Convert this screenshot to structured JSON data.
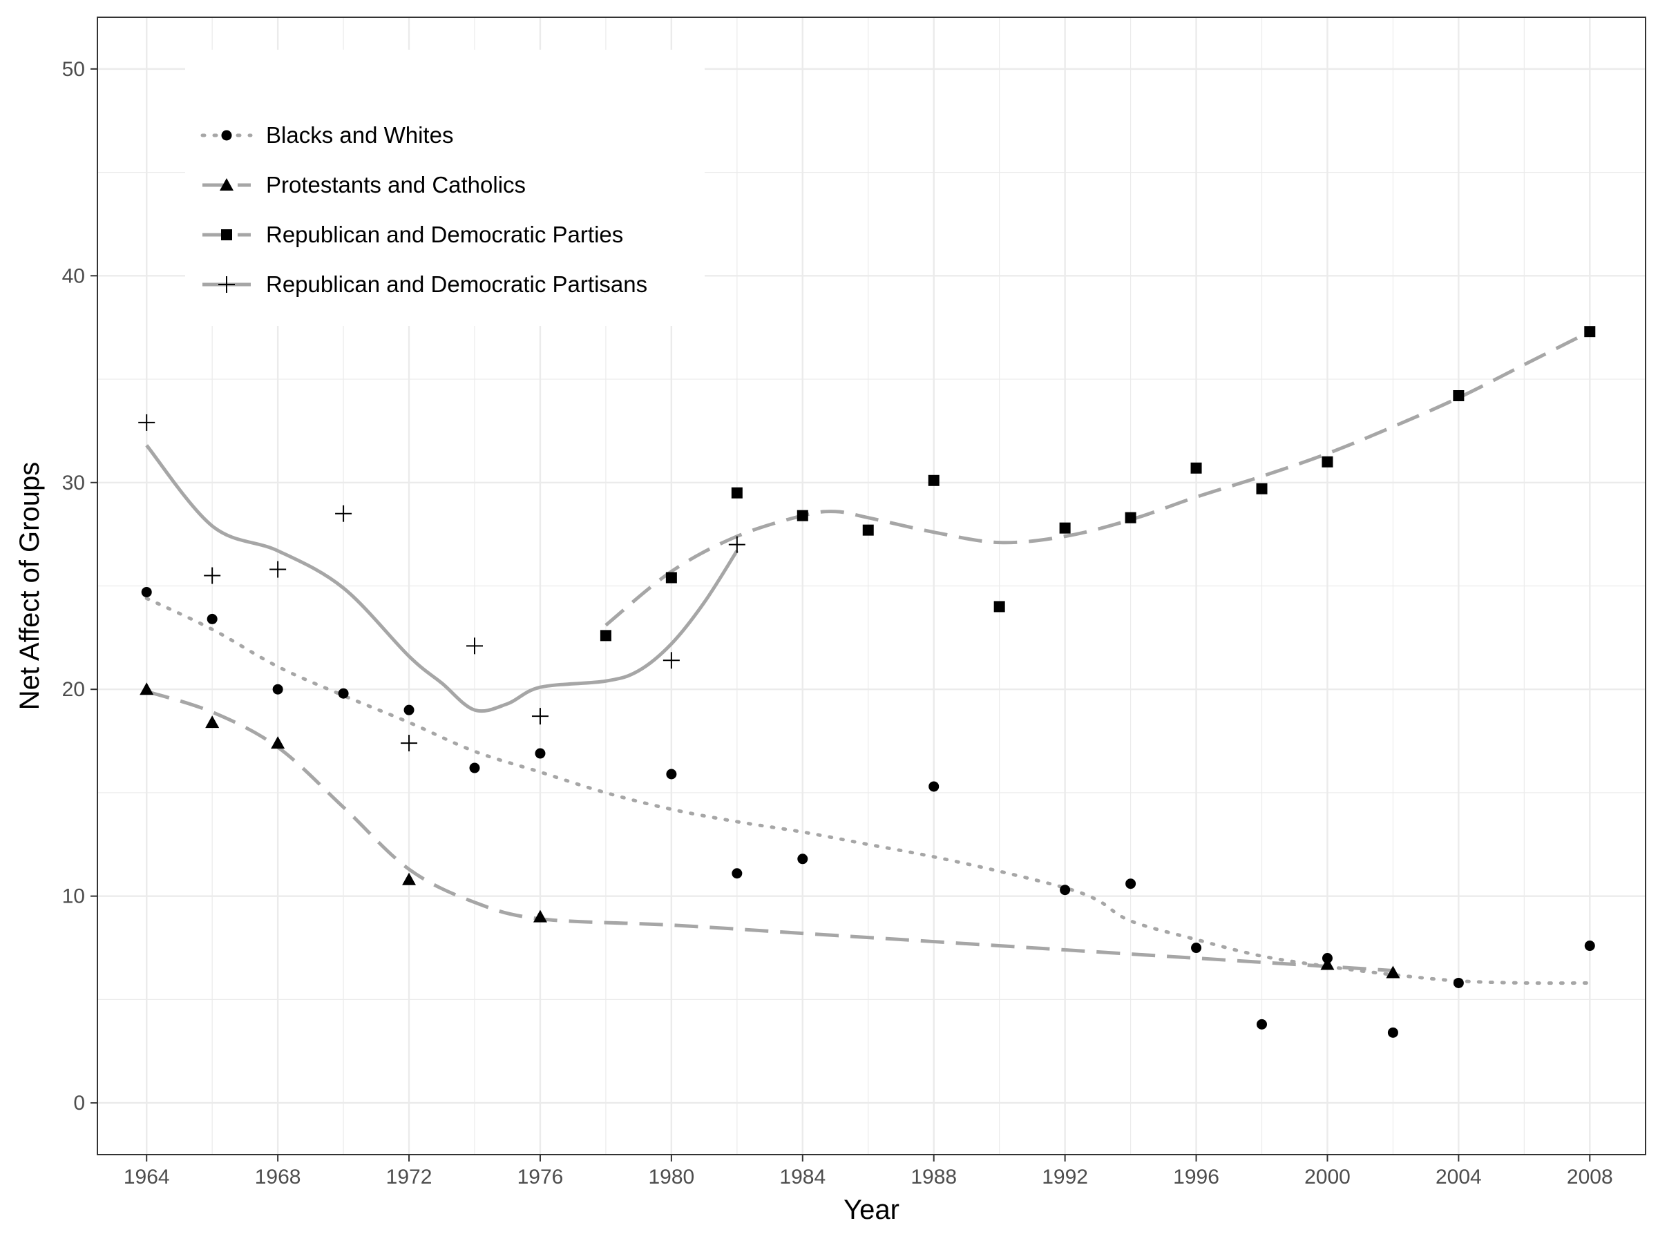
{
  "chart_data": {
    "type": "scatter",
    "title": "",
    "xlabel": "Year",
    "ylabel": "Net Affect of Groups",
    "xlim": [
      1962.5,
      2009.7
    ],
    "ylim": [
      -2.5,
      52.5
    ],
    "x_ticks": [
      1964,
      1968,
      1972,
      1976,
      1980,
      1984,
      1988,
      1992,
      1996,
      2000,
      2004,
      2008
    ],
    "y_ticks": [
      0,
      10,
      20,
      30,
      40,
      50
    ],
    "grid": true,
    "legend_position": "top-left",
    "series": [
      {
        "name": "Blacks and Whites",
        "marker": "circle",
        "line_style": "dotted",
        "points": [
          [
            1964,
            24.7
          ],
          [
            1966,
            23.4
          ],
          [
            1968,
            20.0
          ],
          [
            1970,
            19.8
          ],
          [
            1972,
            19.0
          ],
          [
            1974,
            16.2
          ],
          [
            1976,
            16.9
          ],
          [
            1980,
            15.9
          ],
          [
            1982,
            11.1
          ],
          [
            1984,
            11.8
          ],
          [
            1988,
            15.3
          ],
          [
            1992,
            10.3
          ],
          [
            1994,
            10.6
          ],
          [
            1996,
            7.5
          ],
          [
            1998,
            3.8
          ],
          [
            2000,
            7.0
          ],
          [
            2002,
            3.4
          ],
          [
            2004,
            5.8
          ],
          [
            2008,
            7.6
          ]
        ],
        "smooth": [
          [
            1964,
            24.4
          ],
          [
            1966,
            22.9
          ],
          [
            1968,
            21.1
          ],
          [
            1970,
            19.7
          ],
          [
            1972,
            18.4
          ],
          [
            1974,
            17.0
          ],
          [
            1976,
            16.0
          ],
          [
            1978,
            15.0
          ],
          [
            1980,
            14.2
          ],
          [
            1982,
            13.6
          ],
          [
            1984,
            13.1
          ],
          [
            1986,
            12.5
          ],
          [
            1988,
            11.9
          ],
          [
            1990,
            11.2
          ],
          [
            1992,
            10.4
          ],
          [
            1993,
            9.8
          ],
          [
            1994,
            8.8
          ],
          [
            1996,
            7.9
          ],
          [
            1998,
            7.1
          ],
          [
            2000,
            6.6
          ],
          [
            2002,
            6.2
          ],
          [
            2004,
            5.9
          ],
          [
            2006,
            5.8
          ],
          [
            2008,
            5.8
          ]
        ]
      },
      {
        "name": "Protestants and Catholics",
        "marker": "triangle",
        "line_style": "dashed",
        "points": [
          [
            1964,
            20.0
          ],
          [
            1966,
            18.4
          ],
          [
            1968,
            17.4
          ],
          [
            1972,
            10.8
          ],
          [
            1976,
            9.0
          ],
          [
            2000,
            6.7
          ],
          [
            2002,
            6.3
          ]
        ],
        "smooth": [
          [
            1964,
            19.9
          ],
          [
            1966,
            18.9
          ],
          [
            1968,
            17.2
          ],
          [
            1970,
            14.3
          ],
          [
            1972,
            11.3
          ],
          [
            1974,
            9.7
          ],
          [
            1976,
            8.9
          ],
          [
            1980,
            8.6
          ],
          [
            1984,
            8.2
          ],
          [
            1988,
            7.8
          ],
          [
            1992,
            7.4
          ],
          [
            1996,
            7.0
          ],
          [
            1998,
            6.8
          ],
          [
            2000,
            6.6
          ],
          [
            2002,
            6.4
          ]
        ]
      },
      {
        "name": "Republican and Democratic Parties",
        "marker": "square",
        "line_style": "dashed",
        "points": [
          [
            1978,
            22.6
          ],
          [
            1980,
            25.4
          ],
          [
            1982,
            29.5
          ],
          [
            1984,
            28.4
          ],
          [
            1986,
            27.7
          ],
          [
            1988,
            30.1
          ],
          [
            1990,
            24.0
          ],
          [
            1992,
            27.8
          ],
          [
            1994,
            28.3
          ],
          [
            1996,
            30.7
          ],
          [
            1998,
            29.7
          ],
          [
            2000,
            31.0
          ],
          [
            2004,
            34.2
          ],
          [
            2008,
            37.3
          ]
        ],
        "smooth": [
          [
            1978,
            23.1
          ],
          [
            1980,
            25.7
          ],
          [
            1982,
            27.4
          ],
          [
            1984,
            28.4
          ],
          [
            1985,
            28.6
          ],
          [
            1986,
            28.3
          ],
          [
            1988,
            27.6
          ],
          [
            1990,
            27.1
          ],
          [
            1992,
            27.4
          ],
          [
            1994,
            28.2
          ],
          [
            1996,
            29.3
          ],
          [
            1998,
            30.3
          ],
          [
            2000,
            31.4
          ],
          [
            2002,
            32.7
          ],
          [
            2004,
            34.1
          ],
          [
            2006,
            35.7
          ],
          [
            2008,
            37.3
          ]
        ]
      },
      {
        "name": "Republican and Democratic Partisans",
        "marker": "plus",
        "line_style": "solid",
        "points": [
          [
            1964,
            32.9
          ],
          [
            1966,
            25.5
          ],
          [
            1968,
            25.8
          ],
          [
            1970,
            28.5
          ],
          [
            1972,
            17.4
          ],
          [
            1974,
            22.1
          ],
          [
            1976,
            18.7
          ],
          [
            1980,
            21.4
          ],
          [
            1982,
            27.0
          ]
        ],
        "smooth": [
          [
            1964,
            31.8
          ],
          [
            1966,
            27.9
          ],
          [
            1968,
            26.7
          ],
          [
            1970,
            24.9
          ],
          [
            1972,
            21.6
          ],
          [
            1973,
            20.3
          ],
          [
            1974,
            19.0
          ],
          [
            1975,
            19.3
          ],
          [
            1976,
            20.1
          ],
          [
            1978,
            20.4
          ],
          [
            1979,
            20.9
          ],
          [
            1980,
            22.2
          ],
          [
            1981,
            24.2
          ],
          [
            1982,
            26.7
          ]
        ]
      }
    ]
  }
}
